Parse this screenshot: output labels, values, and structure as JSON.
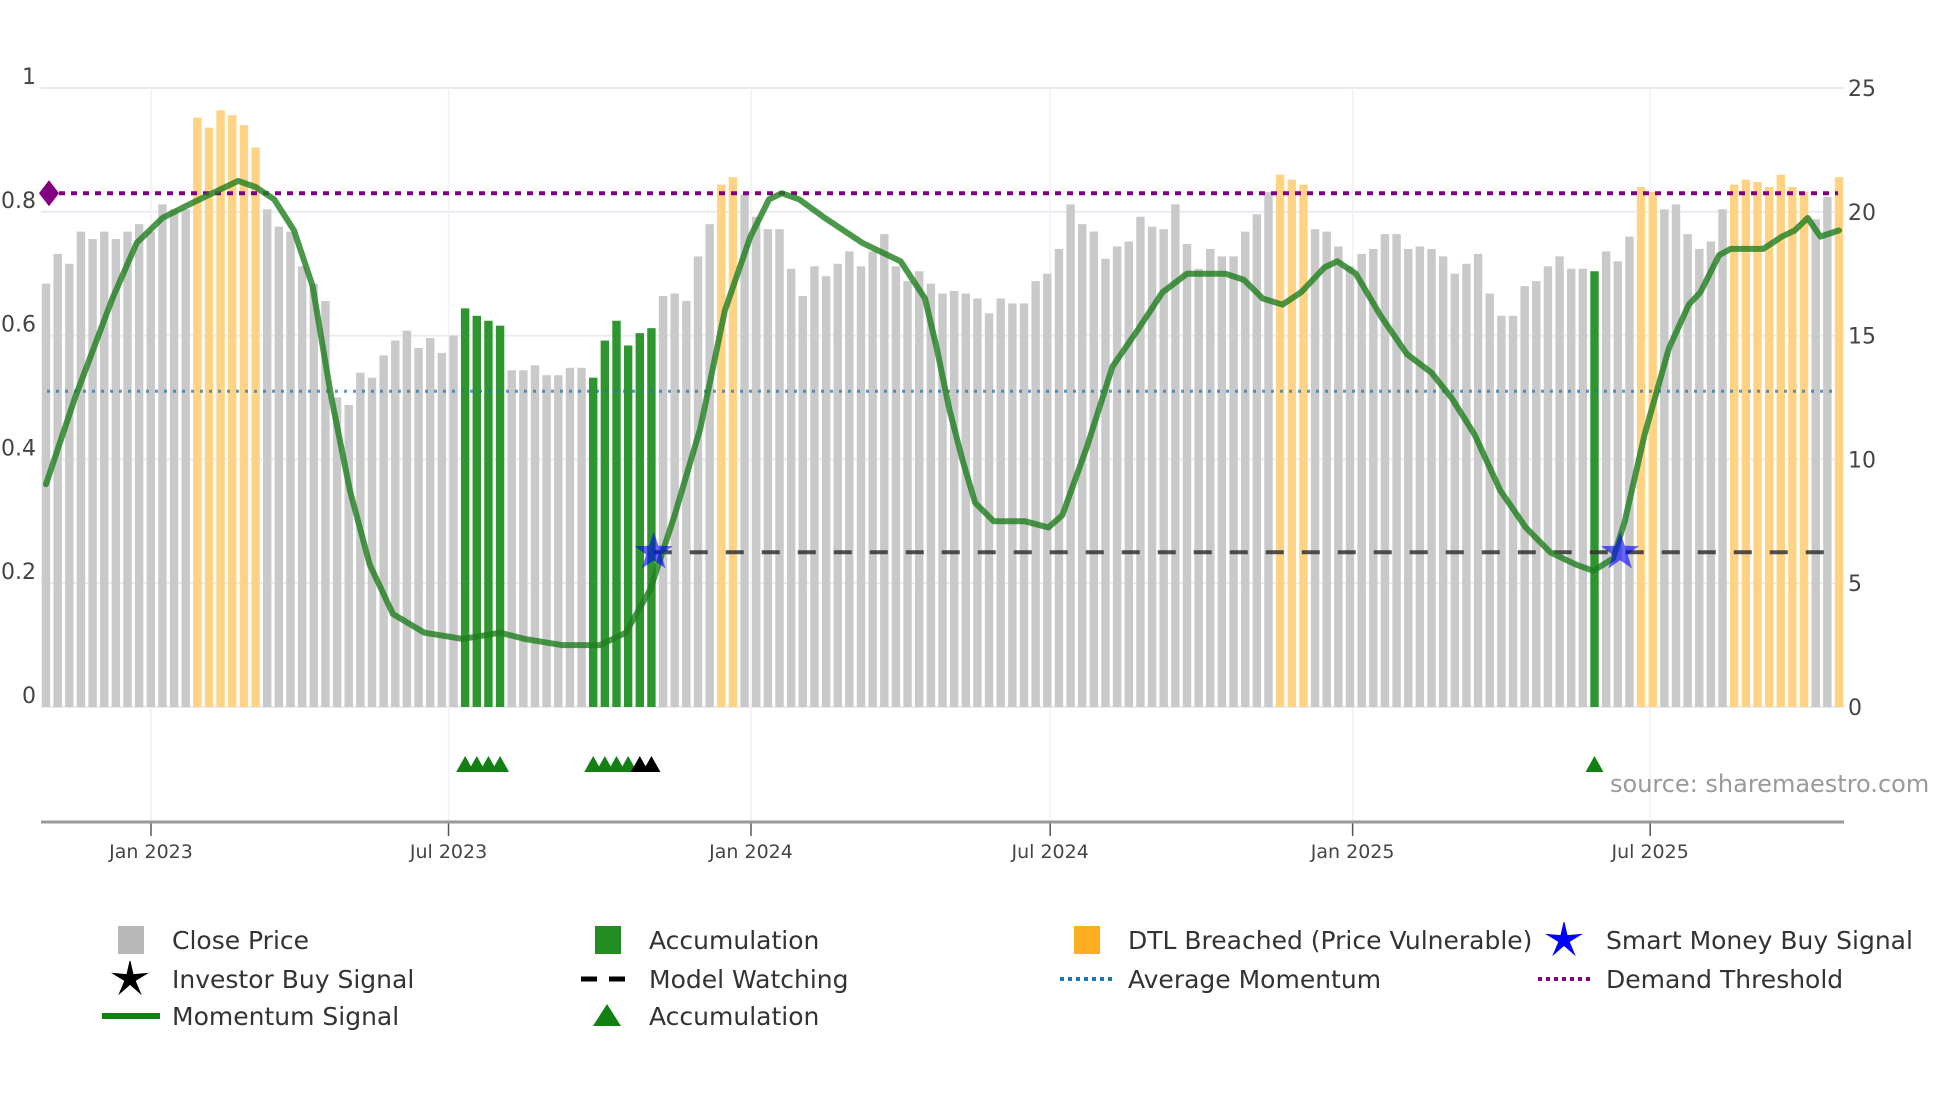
{
  "chart_data": {
    "type": "bar",
    "title": "",
    "source_label": "source: sharemaestro.com",
    "interval": "weekly",
    "x_ticks": [
      {
        "label": "Jan 2023",
        "date": "2023-01-01"
      },
      {
        "label": "Jul 2023",
        "date": "2023-07-01"
      },
      {
        "label": "Jan 2024",
        "date": "2024-01-01"
      },
      {
        "label": "Jul 2024",
        "date": "2024-07-01"
      },
      {
        "label": "Jan 2025",
        "date": "2025-01-01"
      },
      {
        "label": "Jul 2025",
        "date": "2025-07-01"
      }
    ],
    "left_axis": {
      "range": [
        0,
        1
      ],
      "ticks": [
        "0",
        "0.2",
        "0.4",
        "0.6",
        "0.8",
        "1"
      ]
    },
    "right_axis": {
      "range": [
        0,
        25
      ],
      "ticks": [
        "0",
        "5",
        "10",
        "15",
        "20",
        "25"
      ]
    },
    "close_price": [
      17.1,
      18.3,
      17.9,
      19.2,
      18.9,
      19.2,
      18.9,
      19.2,
      19.5,
      19.2,
      20.3,
      20.1,
      20.1,
      23.8,
      23.4,
      24.1,
      23.9,
      23.5,
      22.6,
      20.1,
      19.4,
      19.2,
      17.8,
      17.1,
      16.4,
      12.5,
      12.2,
      13.5,
      13.3,
      14.2,
      14.8,
      15.2,
      14.5,
      14.9,
      14.3,
      15.0,
      16.1,
      15.8,
      15.6,
      15.4,
      13.6,
      13.6,
      13.8,
      13.4,
      13.4,
      13.7,
      13.7,
      13.3,
      14.8,
      15.6,
      14.6,
      15.1,
      15.3,
      16.6,
      16.7,
      16.4,
      18.2,
      19.5,
      21.1,
      21.4,
      20.7,
      19.8,
      19.3,
      19.3,
      17.7,
      16.6,
      17.8,
      17.4,
      17.9,
      18.4,
      17.8,
      18.4,
      19.1,
      17.8,
      17.2,
      17.6,
      17.1,
      16.7,
      16.8,
      16.7,
      16.5,
      15.9,
      16.5,
      16.3,
      16.3,
      17.2,
      17.5,
      18.5,
      20.3,
      19.5,
      19.2,
      18.1,
      18.6,
      18.8,
      19.8,
      19.4,
      19.3,
      20.3,
      18.7,
      17.7,
      18.5,
      18.2,
      18.2,
      19.2,
      19.9,
      20.8,
      21.5,
      21.3,
      21.1,
      19.3,
      19.2,
      18.6,
      17.8,
      18.3,
      18.5,
      19.1,
      19.1,
      18.5,
      18.6,
      18.5,
      18.2,
      17.5,
      17.9,
      18.3,
      16.7,
      15.8,
      15.8,
      17.0,
      17.2,
      17.8,
      18.2,
      17.7,
      17.7,
      17.6,
      18.4,
      18.0,
      19.0,
      21.0,
      20.8,
      20.1,
      20.3,
      19.1,
      18.5,
      18.8,
      20.1,
      21.1,
      21.3,
      21.2,
      21.0,
      21.5,
      21.0,
      20.8,
      19.7,
      20.6,
      21.4
    ],
    "bar_type_runs": [
      [
        "close",
        13
      ],
      [
        "dtl",
        6
      ],
      [
        "close",
        17
      ],
      [
        "accumulation",
        4
      ],
      [
        "close",
        7
      ],
      [
        "accumulation",
        6
      ],
      [
        "close",
        5
      ],
      [
        "dtl",
        2
      ],
      [
        "close",
        46
      ],
      [
        "dtl",
        3
      ],
      [
        "close",
        24
      ],
      [
        "accumulation",
        1
      ],
      [
        "close",
        3
      ],
      [
        "dtl",
        2
      ],
      [
        "close",
        6
      ],
      [
        "dtl",
        7
      ],
      [
        "close",
        2
      ],
      [
        "dtl",
        1
      ]
    ],
    "momentum_signal": [
      [
        0,
        0.36
      ],
      [
        2.5,
        0.5
      ],
      [
        5.7,
        0.66
      ],
      [
        7.8,
        0.75
      ],
      [
        10,
        0.79
      ],
      [
        12.1,
        0.81
      ],
      [
        14.3,
        0.83
      ],
      [
        16.5,
        0.85
      ],
      [
        18,
        0.84
      ],
      [
        19.6,
        0.82
      ],
      [
        21.3,
        0.77
      ],
      [
        22.9,
        0.68
      ],
      [
        24.5,
        0.5
      ],
      [
        26.1,
        0.35
      ],
      [
        27.8,
        0.23
      ],
      [
        29.8,
        0.15
      ],
      [
        32.5,
        0.12
      ],
      [
        35.8,
        0.11
      ],
      [
        39,
        0.12
      ],
      [
        41.1,
        0.11
      ],
      [
        44.3,
        0.1
      ],
      [
        47.6,
        0.1
      ],
      [
        49.8,
        0.12
      ],
      [
        51.9,
        0.19
      ],
      [
        54,
        0.31
      ],
      [
        56.2,
        0.45
      ],
      [
        58.3,
        0.64
      ],
      [
        60.5,
        0.76
      ],
      [
        62.1,
        0.82
      ],
      [
        63.2,
        0.83
      ],
      [
        64.7,
        0.82
      ],
      [
        66.9,
        0.79
      ],
      [
        70.1,
        0.75
      ],
      [
        73.4,
        0.72
      ],
      [
        75.5,
        0.66
      ],
      [
        76.5,
        0.58
      ],
      [
        77.6,
        0.48
      ],
      [
        78.7,
        0.4
      ],
      [
        79.8,
        0.33
      ],
      [
        81.4,
        0.3
      ],
      [
        84.1,
        0.3
      ],
      [
        86.1,
        0.29
      ],
      [
        87.3,
        0.31
      ],
      [
        89.4,
        0.42
      ],
      [
        91.6,
        0.55
      ],
      [
        93.8,
        0.61
      ],
      [
        95.9,
        0.67
      ],
      [
        98,
        0.7
      ],
      [
        101.3,
        0.7
      ],
      [
        102.9,
        0.69
      ],
      [
        104.5,
        0.66
      ],
      [
        106.2,
        0.65
      ],
      [
        107.8,
        0.67
      ],
      [
        109.8,
        0.71
      ],
      [
        110.9,
        0.72
      ],
      [
        112.5,
        0.7
      ],
      [
        114.7,
        0.63
      ],
      [
        116.9,
        0.57
      ],
      [
        119,
        0.54
      ],
      [
        120.7,
        0.5
      ],
      [
        122.7,
        0.44
      ],
      [
        124.9,
        0.35
      ],
      [
        127.1,
        0.29
      ],
      [
        129.2,
        0.25
      ],
      [
        131.4,
        0.23
      ],
      [
        132.9,
        0.22
      ],
      [
        134.6,
        0.24
      ],
      [
        135.6,
        0.3
      ],
      [
        137.3,
        0.44
      ],
      [
        139.4,
        0.58
      ],
      [
        141.1,
        0.65
      ],
      [
        142.1,
        0.67
      ],
      [
        143.7,
        0.73
      ],
      [
        144.7,
        0.74
      ],
      [
        146.4,
        0.74
      ],
      [
        147.5,
        0.74
      ],
      [
        149.1,
        0.76
      ],
      [
        150.2,
        0.77
      ],
      [
        151.3,
        0.79
      ],
      [
        152.4,
        0.76
      ],
      [
        154,
        0.77
      ]
    ],
    "average_momentum": 0.51,
    "demand_threshold": 0.83,
    "model_watching": {
      "level": 0.25,
      "from_week": 52.2,
      "to_week": 154
    },
    "smart_money_buy_signals": [
      [
        52.2,
        0.25
      ],
      [
        135.2,
        0.25
      ]
    ],
    "accumulation_markers": [
      36,
      37,
      38,
      39,
      47,
      48,
      49,
      50,
      133
    ],
    "investor_buy_markers": [
      51,
      52
    ],
    "legend": [
      {
        "label": "Close Price",
        "kind": "close"
      },
      {
        "label": "Accumulation",
        "kind": "accumulation"
      },
      {
        "label": "DTL Breached (Price Vulnerable)",
        "kind": "dtl"
      },
      {
        "label": "Smart Money Buy Signal",
        "kind": "smart"
      },
      {
        "label": "Investor Buy Signal",
        "kind": "investor"
      },
      {
        "label": "Model Watching",
        "kind": "watching"
      },
      {
        "label": "Average Momentum",
        "kind": "avg"
      },
      {
        "label": "Demand Threshold",
        "kind": "demand"
      },
      {
        "label": "Momentum Signal",
        "kind": "momentum"
      },
      {
        "label": "Accumulation",
        "kind": "acc-marker"
      }
    ],
    "colors": {
      "close": "#c9c9c9",
      "accumulation": "#2e962e",
      "dtl": "#ffd383",
      "legend_close": "#b8b8b8",
      "legend_accumulation": "#228b22",
      "legend_dtl": "#ffae21",
      "momentum": "#1e7e1e",
      "smart": "#0000ff",
      "investor": "#000000",
      "avg": "#1f77b4",
      "demand": "#800080",
      "watching": "#000000",
      "marker_green": "#138013"
    }
  }
}
